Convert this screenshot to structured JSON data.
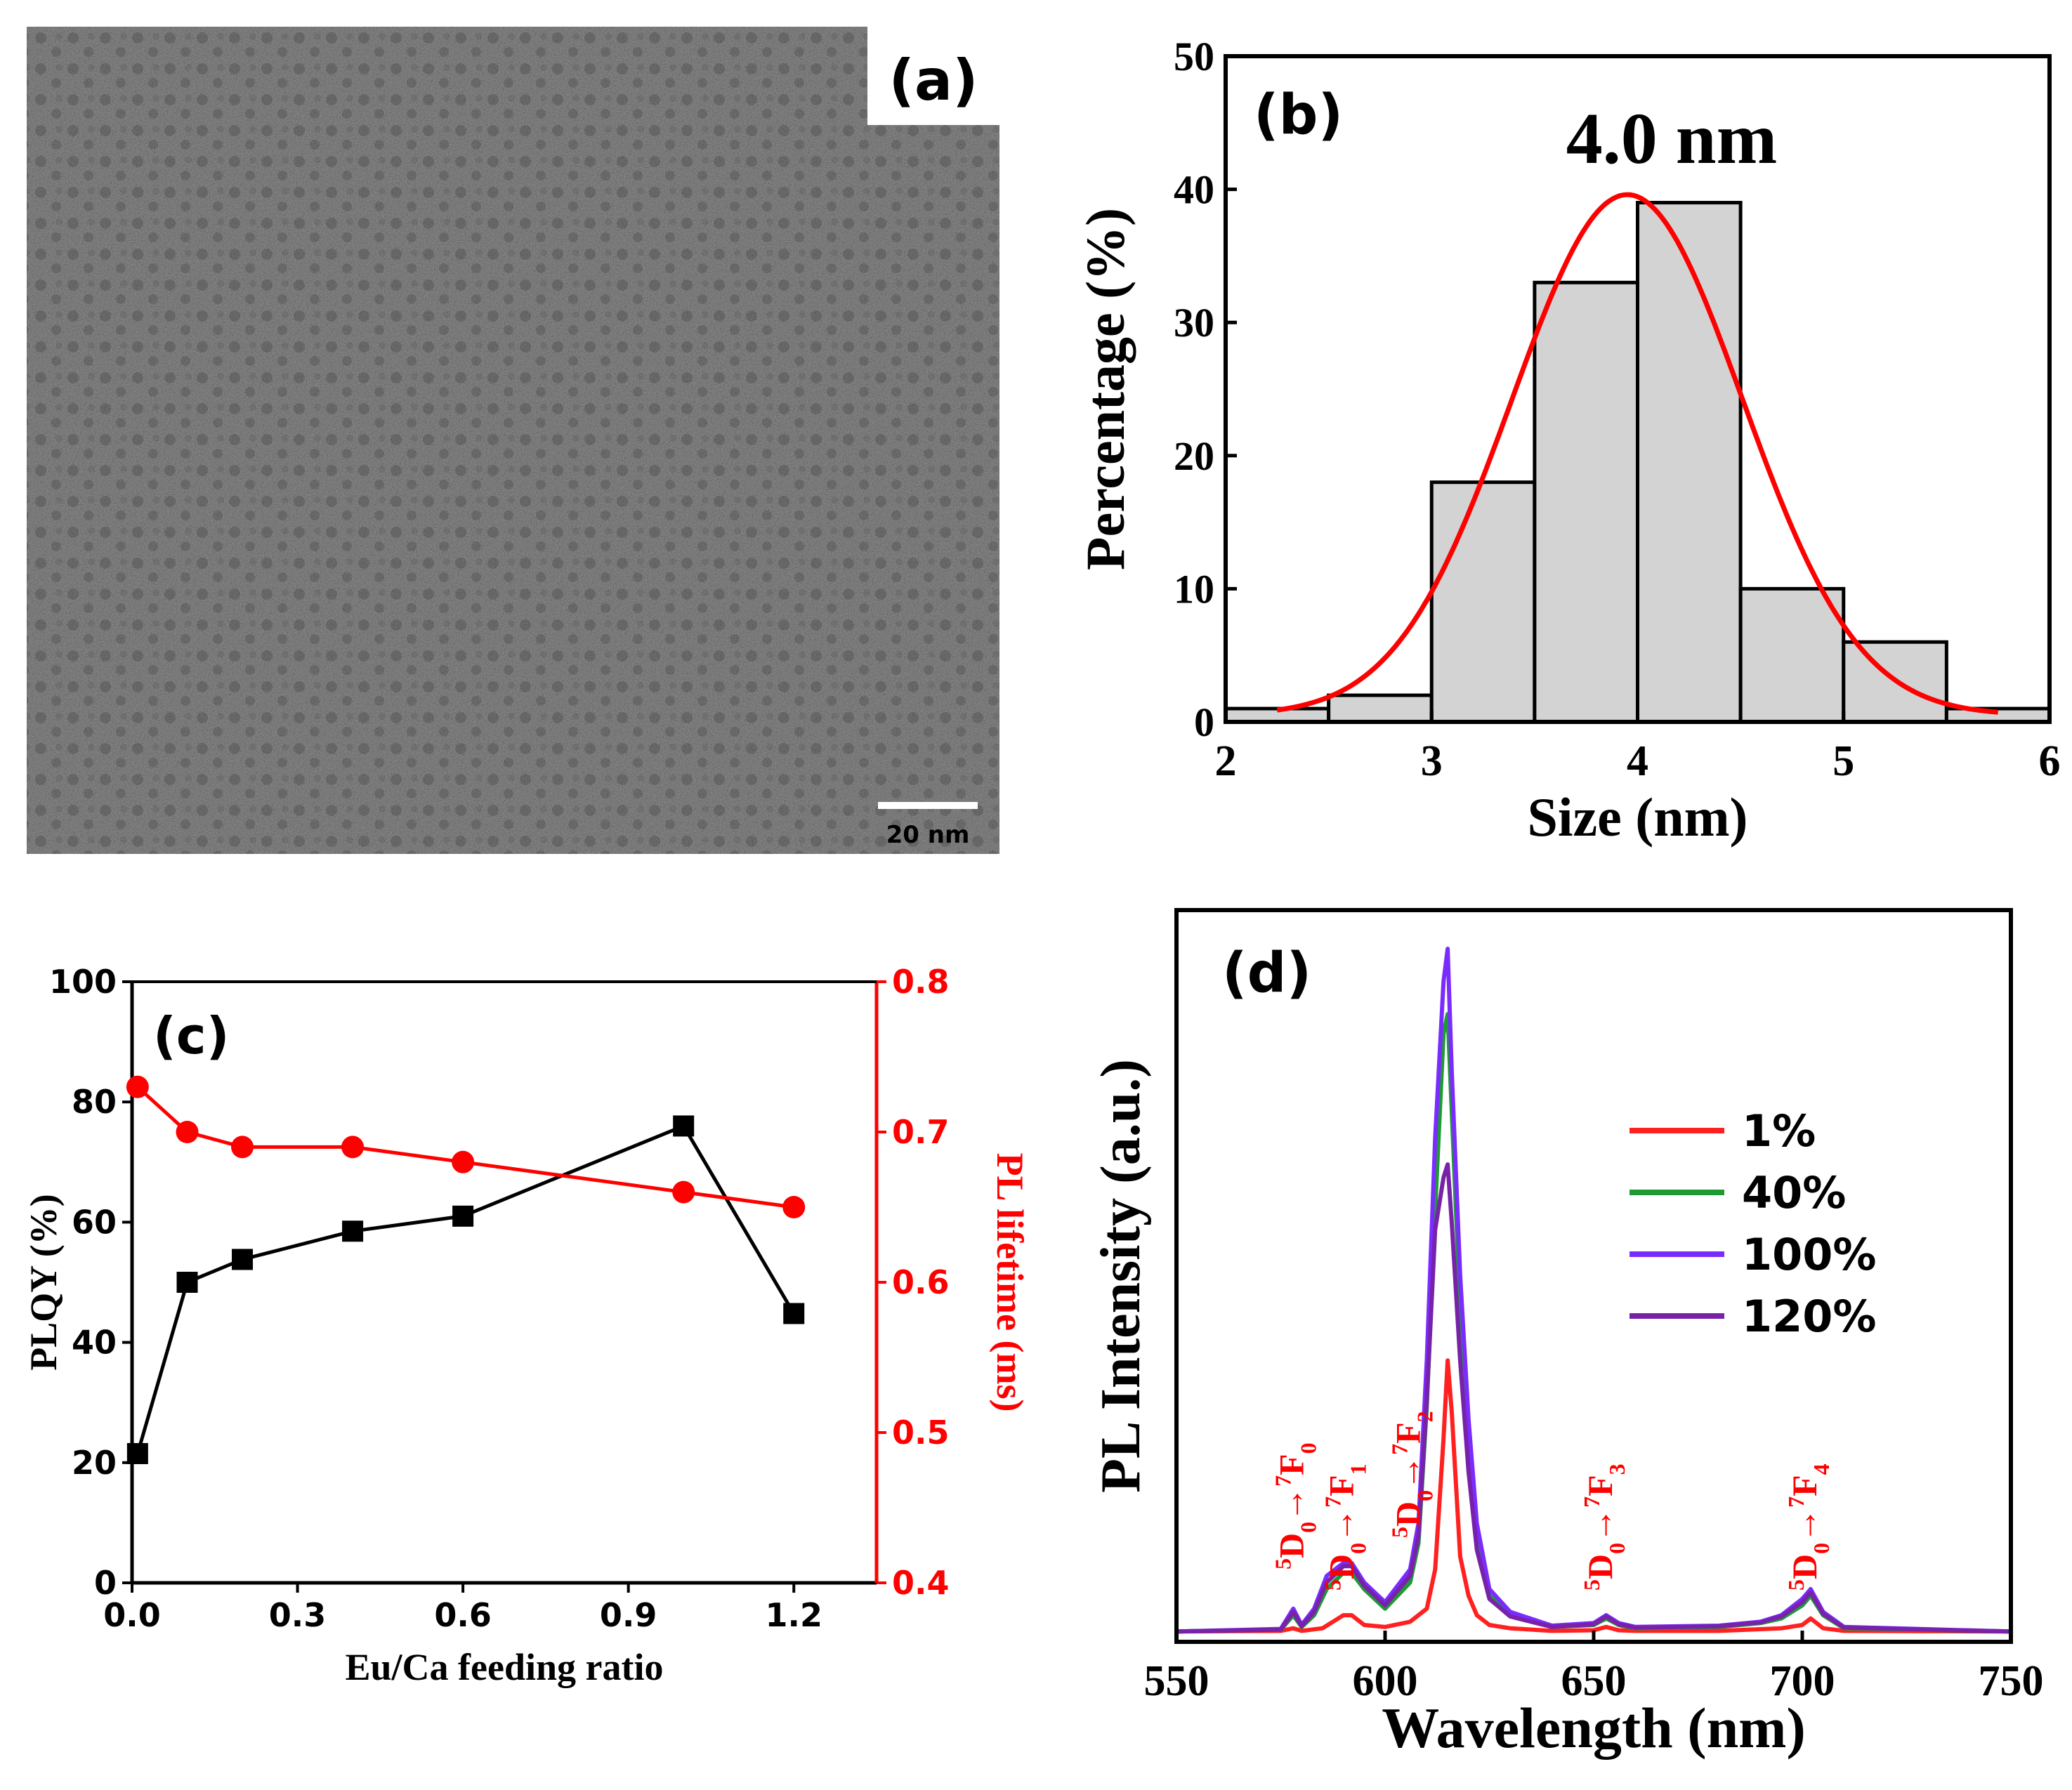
{
  "panel_a": {
    "label": "(a)",
    "scale_bar_label": "20 nm",
    "background_color": "#8a8a8a"
  },
  "chart_data": [
    {
      "id": "b",
      "type": "bar",
      "panel_label": "(b)",
      "annotation": "4.0 nm",
      "xlabel": "Size (nm)",
      "ylabel": "Percentage (%)",
      "xlim": [
        2,
        6
      ],
      "ylim": [
        0,
        50
      ],
      "xticks": [
        2,
        3,
        4,
        5,
        6
      ],
      "yticks": [
        0,
        10,
        20,
        30,
        40,
        50
      ],
      "bin_edges": [
        [
          2.0,
          2.5
        ],
        [
          2.5,
          3.0
        ],
        [
          3.0,
          3.5
        ],
        [
          3.5,
          4.0
        ],
        [
          4.0,
          4.5
        ],
        [
          4.5,
          5.0
        ],
        [
          5.0,
          5.5
        ],
        [
          5.5,
          6.0
        ]
      ],
      "values": [
        1,
        2,
        18,
        33,
        39,
        10,
        6,
        1
      ],
      "bar_color": "#d3d3d3",
      "fit": {
        "type": "gaussian",
        "mean": 3.95,
        "sigma": 0.56,
        "amplitude": 39.6,
        "offset": 0.5,
        "x_range": [
          2.25,
          5.75
        ],
        "color": "#ff0000"
      }
    },
    {
      "id": "c",
      "type": "line",
      "panel_label": "(c)",
      "xlabel": "Eu/Ca feeding ratio",
      "ylabel_left": "PLQY (%)",
      "ylabel_right": "PL lifetime (ms)",
      "xlim": [
        0,
        1.35
      ],
      "ylim_left": [
        0,
        100
      ],
      "ylim_right": [
        0.4,
        0.8
      ],
      "xticks": [
        "0.0",
        "0.3",
        "0.6",
        "0.9",
        "1.2"
      ],
      "yticks_left": [
        "0",
        "20",
        "40",
        "60",
        "80",
        "100"
      ],
      "yticks_right": [
        "0.4",
        "0.5",
        "0.6",
        "0.7",
        "0.8"
      ],
      "series": [
        {
          "axis": "left",
          "marker": "square",
          "color": "#000000",
          "x": [
            0.01,
            0.1,
            0.2,
            0.4,
            0.6,
            1.0,
            1.2
          ],
          "y": [
            21.5,
            50,
            53.8,
            58.5,
            61,
            76,
            44.8
          ]
        },
        {
          "axis": "right",
          "marker": "circle",
          "color": "#ff0000",
          "x": [
            0.01,
            0.1,
            0.2,
            0.4,
            0.6,
            1.0,
            1.2
          ],
          "y": [
            0.73,
            0.7,
            0.69,
            0.69,
            0.68,
            0.66,
            0.65
          ]
        }
      ]
    },
    {
      "id": "d",
      "type": "line",
      "panel_label": "(d)",
      "xlabel": "Wavelength (nm)",
      "ylabel": "PL Intensity (a.u.)",
      "xlim": [
        550,
        750
      ],
      "ylim": [
        0,
        1.12
      ],
      "xticks": [
        550,
        600,
        650,
        700,
        750
      ],
      "legend_position": "upper-right",
      "annotations": [
        {
          "base": "5",
          "d": "D",
          "sub1": "0",
          "arrow": "→",
          "sup": "7",
          "f": "F",
          "sub2": "0",
          "x": 578
        },
        {
          "base": "5",
          "d": "D",
          "sub1": "0",
          "arrow": "→",
          "sup": "7",
          "f": "F",
          "sub2": "1",
          "x": 590
        },
        {
          "base": "5",
          "d": "D",
          "sub1": "0",
          "arrow": "→",
          "sup": "7",
          "f": "F",
          "sub2": "2",
          "x": 606
        },
        {
          "base": "5",
          "d": "D",
          "sub1": "0",
          "arrow": "→",
          "sup": "7",
          "f": "F",
          "sub2": "3",
          "x": 652
        },
        {
          "base": "5",
          "d": "D",
          "sub1": "0",
          "arrow": "→",
          "sup": "7",
          "f": "F",
          "sub2": "4",
          "x": 701
        }
      ],
      "series": [
        {
          "name": "1%",
          "color": "#ff2020",
          "x": [
            550,
            575,
            578,
            580,
            585,
            590,
            592,
            595,
            600,
            606,
            610,
            612,
            614,
            615,
            616,
            618,
            620,
            622,
            625,
            630,
            640,
            650,
            653,
            656,
            660,
            680,
            695,
            700,
            702,
            705,
            710,
            750
          ],
          "y": [
            0.005,
            0.006,
            0.01,
            0.006,
            0.01,
            0.03,
            0.03,
            0.015,
            0.012,
            0.02,
            0.04,
            0.1,
            0.3,
            0.42,
            0.34,
            0.12,
            0.06,
            0.03,
            0.015,
            0.01,
            0.006,
            0.007,
            0.012,
            0.007,
            0.006,
            0.006,
            0.01,
            0.015,
            0.025,
            0.01,
            0.006,
            0.005
          ]
        },
        {
          "name": "40%",
          "color": "#1e9a35",
          "x": [
            550,
            575,
            578,
            580,
            583,
            586,
            590,
            592,
            595,
            600,
            606,
            608,
            610,
            612,
            614,
            615,
            616,
            618,
            620,
            622,
            625,
            630,
            640,
            650,
            653,
            656,
            660,
            680,
            690,
            695,
            700,
            702,
            705,
            710,
            750
          ],
          "y": [
            0.005,
            0.008,
            0.03,
            0.012,
            0.03,
            0.07,
            0.095,
            0.095,
            0.07,
            0.04,
            0.08,
            0.14,
            0.35,
            0.65,
            0.92,
            0.95,
            0.8,
            0.5,
            0.3,
            0.15,
            0.06,
            0.03,
            0.012,
            0.015,
            0.025,
            0.015,
            0.01,
            0.012,
            0.018,
            0.025,
            0.045,
            0.06,
            0.03,
            0.01,
            0.005
          ]
        },
        {
          "name": "100%",
          "color": "#7a2cff",
          "x": [
            550,
            575,
            578,
            580,
            583,
            586,
            590,
            592,
            595,
            600,
            606,
            608,
            610,
            612,
            614,
            615,
            616,
            618,
            620,
            622,
            625,
            630,
            640,
            650,
            653,
            656,
            660,
            680,
            690,
            695,
            700,
            702,
            705,
            710,
            750
          ],
          "y": [
            0.005,
            0.009,
            0.04,
            0.015,
            0.04,
            0.09,
            0.11,
            0.11,
            0.08,
            0.05,
            0.1,
            0.17,
            0.42,
            0.76,
            1.0,
            1.05,
            0.86,
            0.55,
            0.33,
            0.17,
            0.07,
            0.035,
            0.014,
            0.018,
            0.03,
            0.018,
            0.012,
            0.014,
            0.02,
            0.03,
            0.055,
            0.07,
            0.035,
            0.012,
            0.005
          ]
        },
        {
          "name": "120%",
          "color": "#7722a8",
          "x": [
            550,
            575,
            578,
            580,
            583,
            586,
            590,
            592,
            595,
            600,
            606,
            608,
            610,
            612,
            614,
            615,
            616,
            618,
            620,
            622,
            625,
            630,
            640,
            650,
            653,
            656,
            660,
            680,
            690,
            695,
            700,
            702,
            705,
            710,
            750
          ],
          "y": [
            0.005,
            0.008,
            0.035,
            0.013,
            0.035,
            0.08,
            0.105,
            0.105,
            0.075,
            0.045,
            0.09,
            0.15,
            0.36,
            0.62,
            0.7,
            0.72,
            0.63,
            0.42,
            0.25,
            0.13,
            0.055,
            0.028,
            0.012,
            0.016,
            0.028,
            0.016,
            0.011,
            0.013,
            0.019,
            0.028,
            0.05,
            0.065,
            0.032,
            0.011,
            0.005
          ]
        }
      ]
    }
  ]
}
